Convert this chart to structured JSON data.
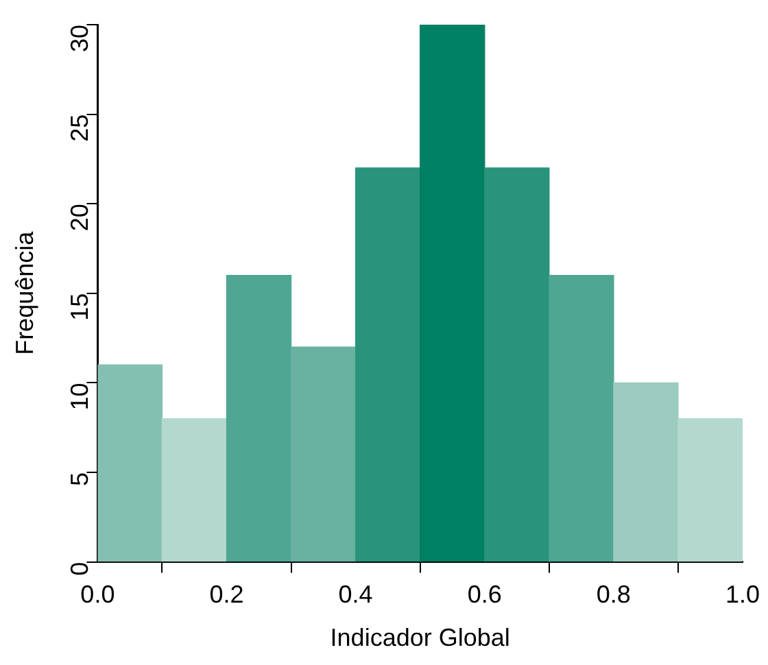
{
  "chart_data": {
    "type": "histogram",
    "xlabel": "Indicador Global",
    "ylabel": "Frequência",
    "bins": [
      0,
      0.1,
      0.2,
      0.3,
      0.4,
      0.5,
      0.6,
      0.7,
      0.8,
      0.9,
      1.0
    ],
    "values": [
      11,
      8,
      16,
      12,
      22,
      30,
      22,
      16,
      10,
      8
    ],
    "colors": [
      "#84c0b1",
      "#b3d9cf",
      "#4fa693",
      "#69b1a0",
      "#2a937c",
      "#008062",
      "#2a937c",
      "#4fa693",
      "#9ccbbf",
      "#b3d9cf"
    ],
    "xlim": [
      0,
      1
    ],
    "xticks": [
      {
        "value": 0,
        "label": "0.0"
      },
      {
        "value": 0.2,
        "label": "0.2"
      },
      {
        "value": 0.4,
        "label": "0.4"
      },
      {
        "value": 0.6,
        "label": "0.6"
      },
      {
        "value": 0.8,
        "label": "0.8"
      },
      {
        "value": 1,
        "label": "1.0"
      }
    ],
    "ylim": [
      0,
      30
    ],
    "yticks": [
      0,
      5,
      10,
      15,
      20,
      25,
      30
    ],
    "grid": false,
    "legend": false
  }
}
